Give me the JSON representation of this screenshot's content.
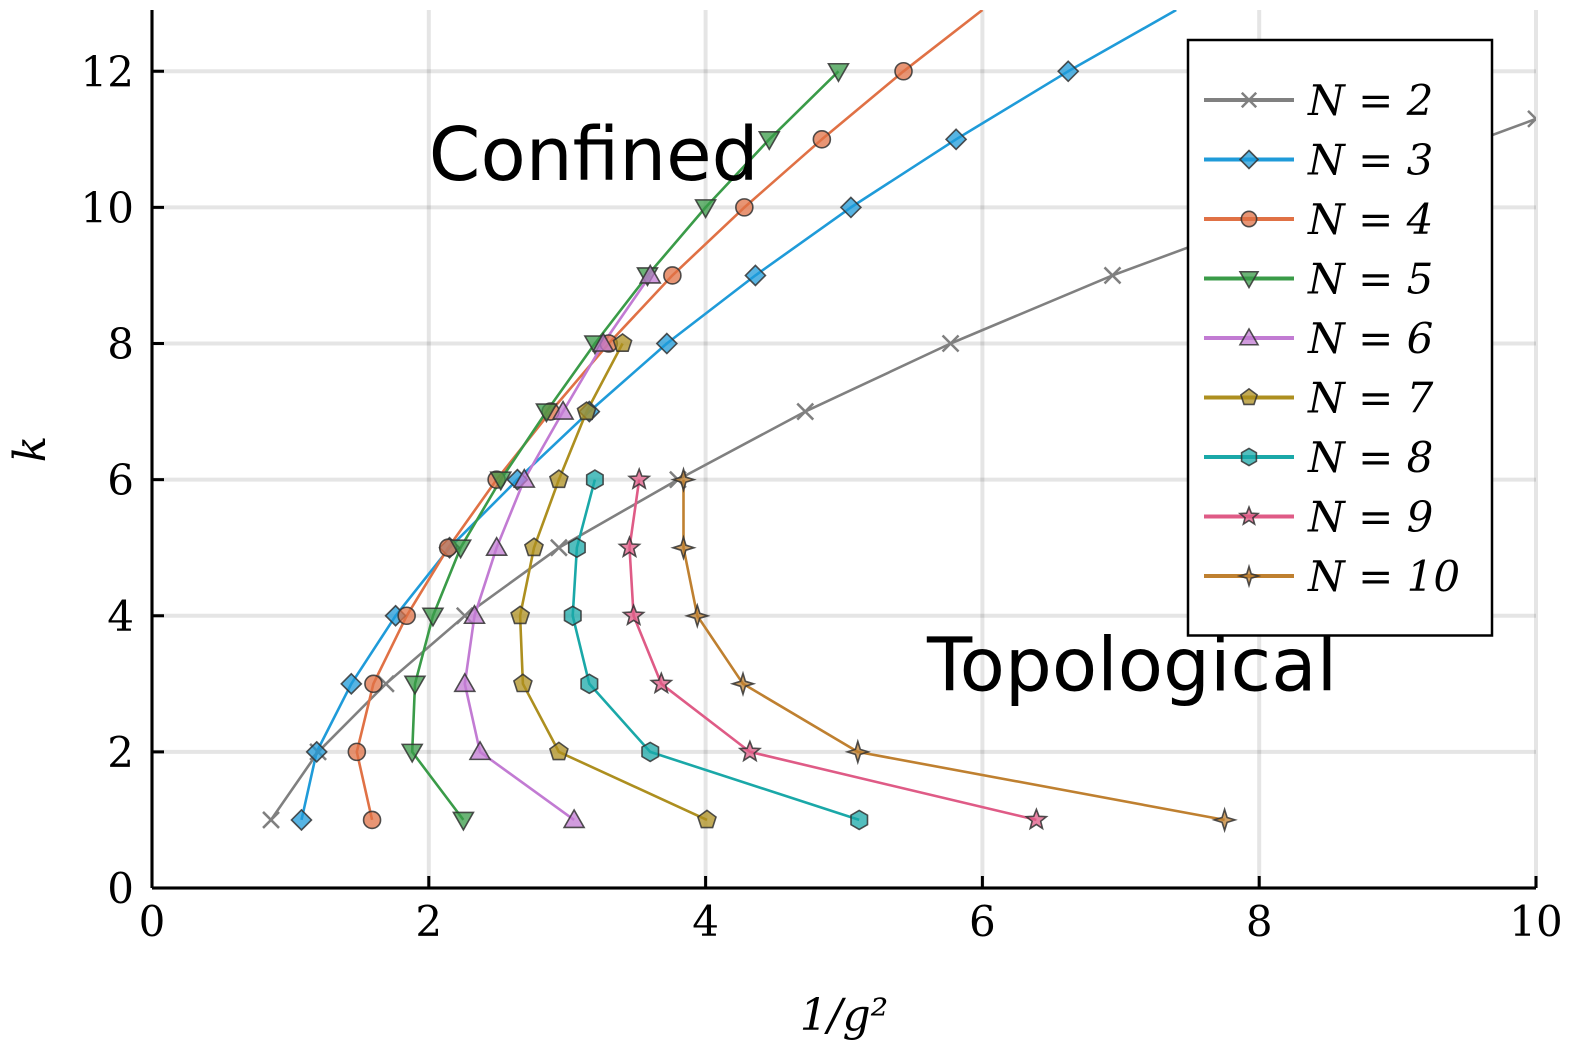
{
  "chart_data": {
    "type": "line",
    "title": "",
    "xlabel": "1/g²",
    "ylabel": "k",
    "xlim": [
      0,
      10
    ],
    "ylim": [
      0,
      12.9
    ],
    "xticks": [
      0,
      2,
      4,
      6,
      8,
      10
    ],
    "yticks": [
      0,
      2,
      4,
      6,
      8,
      10,
      12
    ],
    "grid": true,
    "legend_position": "top-right",
    "annotations": [
      {
        "text": "Confined",
        "x": 2.0,
        "y": 10.4
      },
      {
        "text": "Topological",
        "x": 5.6,
        "y": 2.9
      }
    ],
    "series": [
      {
        "name": "N = 2",
        "color": "#808080",
        "marker": "x",
        "points": [
          [
            0.86,
            1
          ],
          [
            1.2,
            2
          ],
          [
            1.69,
            3
          ],
          [
            2.26,
            4
          ],
          [
            2.94,
            5
          ],
          [
            3.8,
            6
          ],
          [
            4.72,
            7
          ],
          [
            5.77,
            8
          ],
          [
            6.94,
            9
          ],
          [
            10.0,
            11.3
          ]
        ]
      },
      {
        "name": "N = 3",
        "color": "#1f9bd9",
        "marker": "diamond",
        "points": [
          [
            1.08,
            1
          ],
          [
            1.19,
            2
          ],
          [
            1.44,
            3
          ],
          [
            1.76,
            4
          ],
          [
            2.15,
            5
          ],
          [
            2.64,
            6
          ],
          [
            3.16,
            7
          ],
          [
            3.72,
            8
          ],
          [
            4.36,
            9
          ],
          [
            5.05,
            10
          ],
          [
            5.81,
            11
          ],
          [
            6.62,
            12
          ],
          [
            7.4,
            12.9
          ]
        ]
      },
      {
        "name": "N = 4",
        "color": "#e07145",
        "marker": "circle",
        "points": [
          [
            1.59,
            1
          ],
          [
            1.48,
            2
          ],
          [
            1.6,
            3
          ],
          [
            1.84,
            4
          ],
          [
            2.14,
            5
          ],
          [
            2.49,
            6
          ],
          [
            2.88,
            7
          ],
          [
            3.3,
            8
          ],
          [
            3.76,
            9
          ],
          [
            4.28,
            10
          ],
          [
            4.84,
            11
          ],
          [
            5.43,
            12
          ],
          [
            6.0,
            12.9
          ]
        ]
      },
      {
        "name": "N = 5",
        "color": "#3a9b48",
        "marker": "triangle-down",
        "points": [
          [
            2.25,
            1
          ],
          [
            1.88,
            2
          ],
          [
            1.9,
            3
          ],
          [
            2.03,
            4
          ],
          [
            2.23,
            5
          ],
          [
            2.52,
            6
          ],
          [
            2.85,
            7
          ],
          [
            3.2,
            8
          ],
          [
            3.58,
            9
          ],
          [
            4.0,
            10
          ],
          [
            4.46,
            11
          ],
          [
            4.96,
            12
          ]
        ]
      },
      {
        "name": "N = 6",
        "color": "#c27bd3",
        "marker": "triangle-up",
        "points": [
          [
            3.05,
            1
          ],
          [
            2.37,
            2
          ],
          [
            2.26,
            3
          ],
          [
            2.33,
            4
          ],
          [
            2.49,
            5
          ],
          [
            2.69,
            6
          ],
          [
            2.97,
            7
          ],
          [
            3.26,
            8
          ],
          [
            3.6,
            9
          ]
        ]
      },
      {
        "name": "N = 7",
        "color": "#ad8f1f",
        "marker": "pentagon",
        "points": [
          [
            4.01,
            1
          ],
          [
            2.94,
            2
          ],
          [
            2.68,
            3
          ],
          [
            2.66,
            4
          ],
          [
            2.76,
            5
          ],
          [
            2.94,
            6
          ],
          [
            3.14,
            7
          ],
          [
            3.4,
            8
          ]
        ]
      },
      {
        "name": "N = 8",
        "color": "#1aa8a8",
        "marker": "hexagon",
        "points": [
          [
            5.11,
            1
          ],
          [
            3.6,
            2
          ],
          [
            3.16,
            3
          ],
          [
            3.04,
            4
          ],
          [
            3.07,
            5
          ],
          [
            3.2,
            6
          ]
        ]
      },
      {
        "name": "N = 9",
        "color": "#df5b86",
        "marker": "star5",
        "points": [
          [
            6.39,
            1
          ],
          [
            4.32,
            2
          ],
          [
            3.68,
            3
          ],
          [
            3.48,
            4
          ],
          [
            3.45,
            5
          ],
          [
            3.52,
            6
          ]
        ]
      },
      {
        "name": "N = 10",
        "color": "#bf8030",
        "marker": "star4",
        "points": [
          [
            7.75,
            1
          ],
          [
            5.1,
            2
          ],
          [
            4.27,
            3
          ],
          [
            3.94,
            4
          ],
          [
            3.84,
            5
          ],
          [
            3.84,
            6
          ]
        ]
      }
    ]
  }
}
